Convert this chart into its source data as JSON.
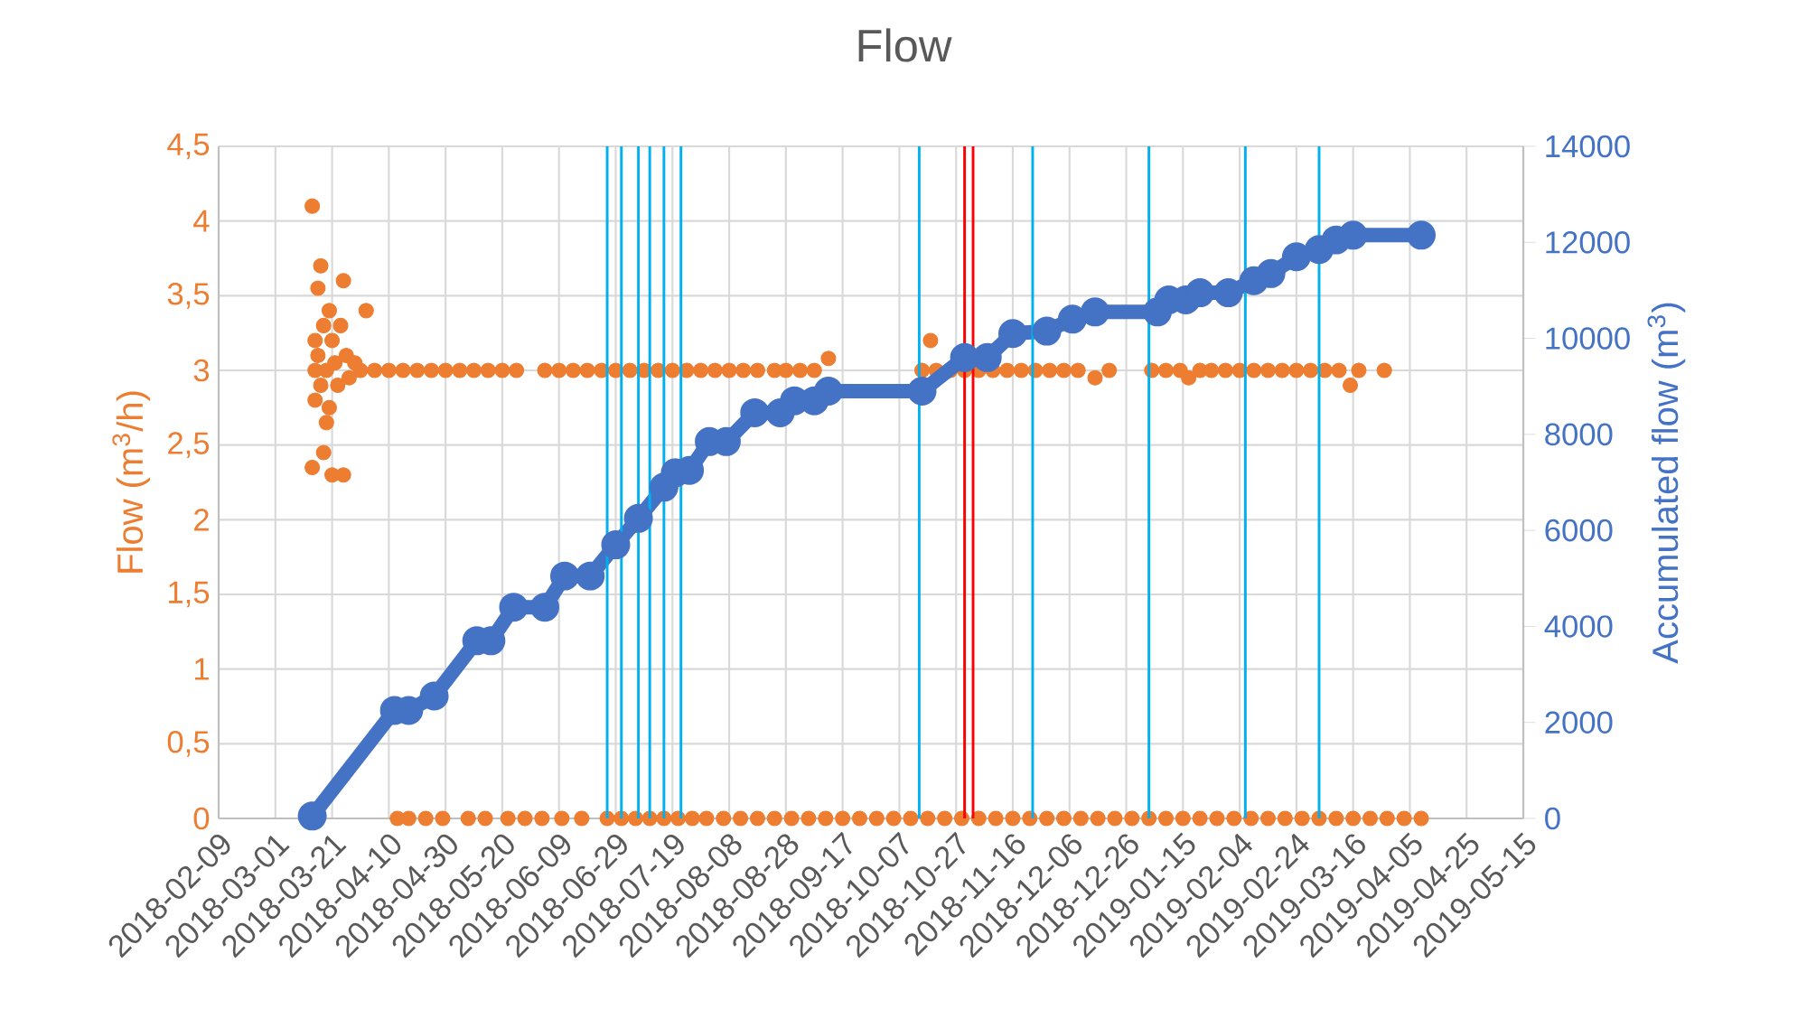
{
  "chart_data": {
    "type": "scatter",
    "title": "Flow",
    "ylabel": "Flow (m$^{3}$/h)",
    "y2label": "Accumulated flow (m$^{3}$)",
    "marker": "circle",
    "grid": true,
    "xlim": [
      "2018-02-09",
      "2019-05-15"
    ],
    "xticks": [
      "2018-02-09",
      "2018-03-01",
      "2018-03-21",
      "2018-04-10",
      "2018-04-30",
      "2018-05-20",
      "2018-06-09",
      "2018-06-29",
      "2018-07-19",
      "2018-08-08",
      "2018-08-28",
      "2018-09-17",
      "2018-10-07",
      "2018-10-27",
      "2018-11-16",
      "2018-12-06",
      "2018-12-26",
      "2019-01-15",
      "2019-02-04",
      "2019-02-24",
      "2019-03-16",
      "2019-04-05",
      "2019-04-25",
      "2019-05-15"
    ],
    "ylim": [
      0,
      4.5
    ],
    "yticks": [
      0,
      {
        "value": 0.5,
        "label": "0,5"
      },
      1,
      {
        "value": 1.5,
        "label": "1,5"
      },
      2,
      {
        "value": 2.5,
        "label": "2,5"
      },
      3,
      {
        "value": 3.5,
        "label": "3,5"
      },
      4,
      {
        "value": 4.5,
        "label": "4,5"
      }
    ],
    "y2lim": [
      0,
      14000
    ],
    "y2ticks": [
      0,
      2000,
      4000,
      6000,
      8000,
      10000,
      12000,
      14000
    ],
    "series": [
      {
        "color": "#ed7d31",
        "x": [
          "2018-03-14",
          "2018-03-14",
          "2018-03-15",
          "2018-03-15",
          "2018-03-15",
          "2018-03-16",
          "2018-03-16",
          "2018-03-17",
          "2018-03-17",
          "2018-03-18",
          "2018-03-18",
          "2018-03-19",
          "2018-03-19",
          "2018-03-20",
          "2018-03-20",
          "2018-03-21",
          "2018-03-21",
          "2018-03-22",
          "2018-03-23",
          "2018-03-24",
          "2018-03-25",
          "2018-03-25",
          "2018-03-26",
          "2018-03-27",
          "2018-03-29",
          "2018-04-02",
          "2018-03-31",
          "2018-04-05",
          "2018-04-10",
          "2018-04-15",
          "2018-04-20",
          "2018-04-25",
          "2018-04-30",
          "2018-05-05",
          "2018-05-10",
          "2018-05-15",
          "2018-05-20",
          "2018-05-25",
          "2018-06-04",
          "2018-06-09",
          "2018-06-14",
          "2018-06-19",
          "2018-06-24",
          "2018-06-29",
          "2018-07-04",
          "2018-07-09",
          "2018-07-14",
          "2018-07-19",
          "2018-07-24",
          "2018-07-29",
          "2018-08-03",
          "2018-08-08",
          "2018-08-13",
          "2018-08-18",
          "2018-08-24",
          "2018-08-28",
          "2018-09-02",
          "2018-09-07",
          "2018-09-12",
          "2018-10-15",
          "2018-10-18",
          "2018-10-20",
          "2018-10-25",
          "2018-10-30",
          "2018-11-04",
          "2018-11-09",
          "2018-11-14",
          "2018-11-19",
          "2018-11-24",
          "2018-11-29",
          "2018-12-04",
          "2018-12-09",
          "2018-12-15",
          "2018-12-20",
          "2019-01-04",
          "2019-01-09",
          "2019-01-14",
          "2019-01-17",
          "2019-01-21",
          "2019-01-25",
          "2019-01-30",
          "2019-02-04",
          "2019-02-09",
          "2019-02-14",
          "2019-02-19",
          "2019-02-24",
          "2019-03-01",
          "2019-03-06",
          "2019-03-11",
          "2019-03-15",
          "2019-03-18",
          "2019-03-27",
          "2018-04-13",
          "2018-04-17",
          "2018-04-23",
          "2018-04-29",
          "2018-05-08",
          "2018-05-14",
          "2018-05-22",
          "2018-05-28",
          "2018-06-03",
          "2018-06-10",
          "2018-06-17",
          "2018-06-26",
          "2018-07-01",
          "2018-07-06",
          "2018-07-11",
          "2018-07-16",
          "2018-07-21",
          "2018-07-26",
          "2018-07-31",
          "2018-08-06",
          "2018-08-12",
          "2018-08-18",
          "2018-08-24",
          "2018-08-30",
          "2018-09-05",
          "2018-09-11",
          "2018-09-17",
          "2018-09-23",
          "2018-09-29",
          "2018-10-05",
          "2018-10-11",
          "2018-10-17",
          "2018-10-23",
          "2018-10-29",
          "2018-11-04",
          "2018-11-10",
          "2018-11-16",
          "2018-11-22",
          "2018-11-28",
          "2018-12-04",
          "2018-12-10",
          "2018-12-16",
          "2018-12-22",
          "2018-12-28",
          "2019-01-03",
          "2019-01-09",
          "2019-01-15",
          "2019-01-21",
          "2019-01-27",
          "2019-02-02",
          "2019-02-08",
          "2019-02-14",
          "2019-02-20",
          "2019-02-26",
          "2019-03-04",
          "2019-03-10",
          "2019-03-16",
          "2019-03-22",
          "2019-03-28",
          "2019-04-03",
          "2019-04-09"
        ],
        "values": [
          4.1,
          2.35,
          3.0,
          3.2,
          2.8,
          3.55,
          3.1,
          3.7,
          2.9,
          2.45,
          3.3,
          2.65,
          3.0,
          3.4,
          2.75,
          2.3,
          3.2,
          3.05,
          2.9,
          3.3,
          3.6,
          2.3,
          3.1,
          2.95,
          3.05,
          3.4,
          3.0,
          3.0,
          3.0,
          3.0,
          3.0,
          3.0,
          3.0,
          3.0,
          3.0,
          3.0,
          3.0,
          3.0,
          3.0,
          3.0,
          3.0,
          3.0,
          3.0,
          3.0,
          3.0,
          3.0,
          3.0,
          3.0,
          3.0,
          3.0,
          3.0,
          3.0,
          3.0,
          3.0,
          3.0,
          3.0,
          3.0,
          3.0,
          3.08,
          3.0,
          3.2,
          3.0,
          3.0,
          3.0,
          3.0,
          3.0,
          3.0,
          3.0,
          3.0,
          3.0,
          3.0,
          3.0,
          2.95,
          3.0,
          3.0,
          3.0,
          3.0,
          2.95,
          3.0,
          3.0,
          3.0,
          3.0,
          3.0,
          3.0,
          3.0,
          3.0,
          3.0,
          3.0,
          3.0,
          2.9,
          3.0,
          3.0,
          0,
          0,
          0,
          0,
          0,
          0,
          0,
          0,
          0,
          0,
          0,
          0,
          0,
          0,
          0,
          0,
          0,
          0,
          0,
          0,
          0,
          0,
          0,
          0,
          0,
          0,
          0,
          0,
          0,
          0,
          0,
          0,
          0,
          0,
          0,
          0,
          0,
          0,
          0,
          0,
          0,
          0,
          0,
          0,
          0,
          0,
          0,
          0,
          0,
          0,
          0,
          0,
          0,
          0,
          0,
          0,
          0,
          0,
          0,
          0,
          0
        ]
      },
      {
        "type": "line",
        "axis": "y2",
        "color": "#4472c4",
        "x": [
          "2018-03-14",
          "2018-04-12",
          "2018-04-17",
          "2018-04-26",
          "2018-05-11",
          "2018-05-16",
          "2018-05-24",
          "2018-06-04",
          "2018-06-11",
          "2018-06-20",
          "2018-06-29",
          "2018-07-07",
          "2018-07-16",
          "2018-07-20",
          "2018-07-25",
          "2018-08-01",
          "2018-08-07",
          "2018-08-17",
          "2018-08-26",
          "2018-08-31",
          "2018-09-07",
          "2018-09-12",
          "2018-10-15",
          "2018-10-30",
          "2018-11-07",
          "2018-11-16",
          "2018-11-28",
          "2018-12-07",
          "2018-12-15",
          "2019-01-06",
          "2019-01-10",
          "2019-01-16",
          "2019-01-21",
          "2019-01-31",
          "2019-02-09",
          "2019-02-15",
          "2019-02-24",
          "2019-03-04",
          "2019-03-10",
          "2019-03-16",
          "2019-04-09"
        ],
        "values": [
          50,
          2250,
          2250,
          2550,
          3700,
          3700,
          4400,
          4400,
          5050,
          5050,
          5700,
          6250,
          6900,
          7200,
          7250,
          7850,
          7850,
          8450,
          8450,
          8700,
          8700,
          8900,
          8900,
          9600,
          9600,
          10100,
          10150,
          10400,
          10550,
          10550,
          10800,
          10800,
          10950,
          10950,
          11200,
          11350,
          11700,
          11850,
          12050,
          12150,
          12150
        ]
      }
    ],
    "ref_lines": [
      {
        "axis": "x",
        "value": "2018-06-26",
        "color": "#00b0f0"
      },
      {
        "axis": "x",
        "value": "2018-07-01",
        "color": "#00b0f0"
      },
      {
        "axis": "x",
        "value": "2018-07-07",
        "color": "#00b0f0"
      },
      {
        "axis": "x",
        "value": "2018-07-11",
        "color": "#00b0f0"
      },
      {
        "axis": "x",
        "value": "2018-07-16",
        "color": "#00b0f0"
      },
      {
        "axis": "x",
        "value": "2018-07-22",
        "color": "#00b0f0"
      },
      {
        "axis": "x",
        "value": "2018-10-14",
        "color": "#00b0f0"
      },
      {
        "axis": "x",
        "value": "2018-10-30",
        "color": "#ff0000"
      },
      {
        "axis": "x",
        "value": "2018-11-02",
        "color": "#ff0000"
      },
      {
        "axis": "x",
        "value": "2018-11-23",
        "color": "#00b0f0"
      },
      {
        "axis": "x",
        "value": "2019-01-03",
        "color": "#00b0f0"
      },
      {
        "axis": "x",
        "value": "2019-02-06",
        "color": "#00b0f0"
      },
      {
        "axis": "x",
        "value": "2019-03-04",
        "color": "#00b0f0"
      }
    ]
  }
}
